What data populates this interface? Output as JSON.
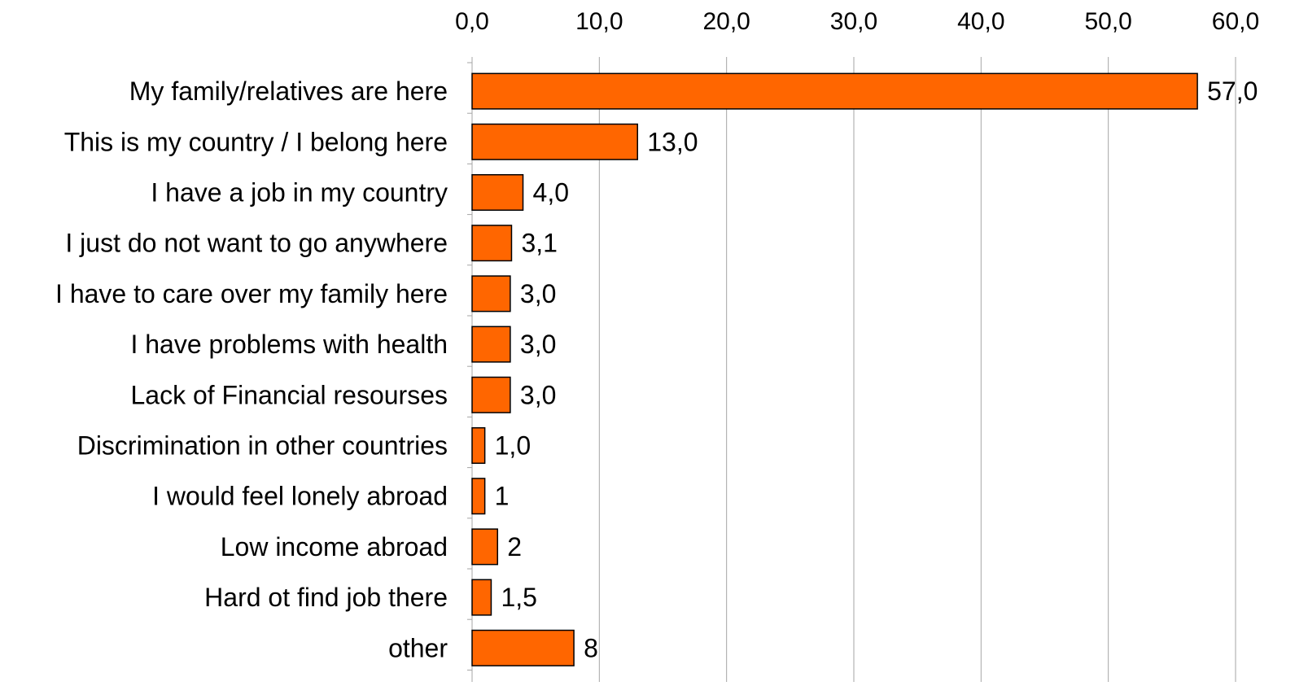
{
  "chart_data": {
    "type": "bar",
    "orientation": "horizontal",
    "title": "",
    "xlabel": "",
    "ylabel": "",
    "xlim": [
      0,
      60
    ],
    "x_axis_position": "top",
    "x_ticks": [
      "0,0",
      "10,0",
      "20,0",
      "30,0",
      "40,0",
      "50,0",
      "60,0"
    ],
    "grid": "vertical",
    "legend": "none",
    "bar_color": "#ff6600",
    "bar_outline_color": "#000000",
    "grid_color": "#a6a6a6",
    "categories": [
      "My family/relatives are here",
      "This is my country / I belong here",
      "I have a job in my country",
      "I just do not want to go anywhere",
      "I have to care over my family here",
      "I have problems with health",
      "Lack of Financial resourses",
      "Discrimination in other countries",
      "I would feel lonely abroad",
      "Low income abroad",
      "Hard ot find job there",
      "other"
    ],
    "values": [
      57.0,
      13.0,
      4.0,
      3.1,
      3.0,
      3.0,
      3.0,
      1.0,
      1,
      2,
      1.5,
      8
    ],
    "data_labels": [
      "57,0",
      "13,0",
      "4,0",
      "3,1",
      "3,0",
      "3,0",
      "3,0",
      "1,0",
      "1",
      "2",
      "1,5",
      "8"
    ]
  }
}
